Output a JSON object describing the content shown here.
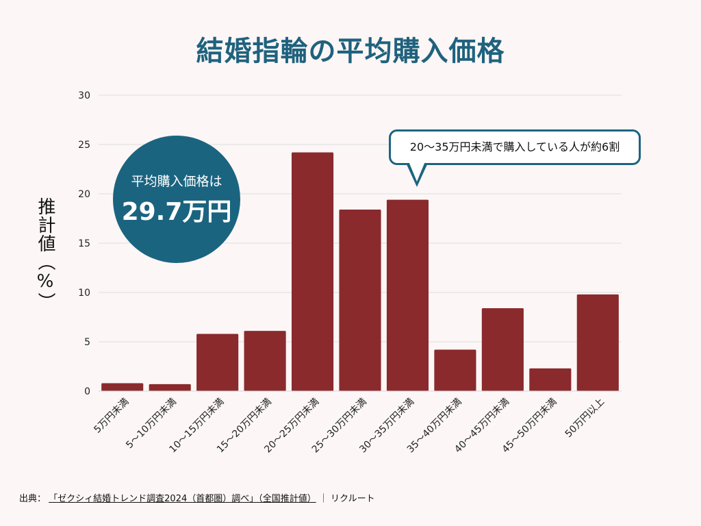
{
  "title": "結婚指輪の平均購入価格",
  "chart_data": {
    "type": "bar",
    "title": "結婚指輪の平均購入価格",
    "xlabel": "",
    "ylabel": "推計値（%）",
    "ylim": [
      0,
      30
    ],
    "yticks": [
      0,
      5,
      10,
      15,
      20,
      25,
      30
    ],
    "categories": [
      "5万円未満",
      "5～10万円未満",
      "10～15万円未満",
      "15～20万円未満",
      "20～25万円未満",
      "25～30万円未満",
      "30～35万円未満",
      "35～40万円未満",
      "40～45万円未満",
      "45～50万円未満",
      "50万円以上"
    ],
    "values": [
      0.8,
      0.7,
      5.8,
      6.1,
      24.2,
      18.4,
      19.4,
      4.2,
      8.4,
      2.3,
      9.8
    ],
    "bar_color": "#8a2a2d",
    "grid": true
  },
  "annotations": {
    "circle_label": "平均購入価格は",
    "circle_value": "29.7万円",
    "callout_text": "20〜35万円未満で購入している人が約6割"
  },
  "source": {
    "prefix": "出典：",
    "title": "「ゼクシィ結婚トレンド調査2024（首都圏）調べ」（全国推計値）",
    "divider": "｜",
    "publisher": "リクルート"
  },
  "colors": {
    "title": "#1f627d",
    "accent": "#1b6480",
    "bar": "#8a2a2d",
    "background": "#fcf6f6",
    "grid": "#dddddd"
  }
}
